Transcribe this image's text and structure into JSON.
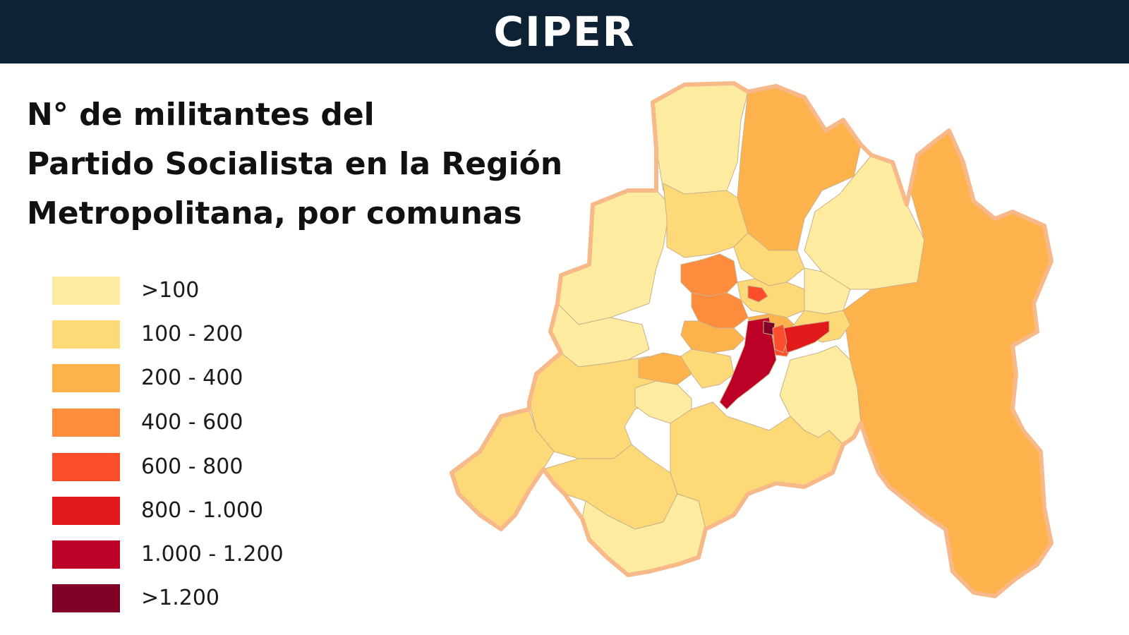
{
  "header": {
    "brand": "CIPER"
  },
  "title_lines": [
    "N° de militantes del",
    "Partido Socialista en la Región",
    "Metropolitana, por comunas"
  ],
  "legend": [
    {
      "label": ">100",
      "color": "#fdeba0"
    },
    {
      "label": "100 - 200",
      "color": "#fed978"
    },
    {
      "label": "200 - 400",
      "color": "#feb24c"
    },
    {
      "label": "400 - 600",
      "color": "#fd8d3c"
    },
    {
      "label": "600 - 800",
      "color": "#fc4e2a"
    },
    {
      "label": "800 - 1.000",
      "color": "#e31a1c"
    },
    {
      "label": "1.000 - 1.200",
      "color": "#bd0026"
    },
    {
      "label": ">1.200",
      "color": "#800026"
    }
  ],
  "map": {
    "outline_color": "#f7b88a",
    "border_color": "#c9b08a"
  }
}
